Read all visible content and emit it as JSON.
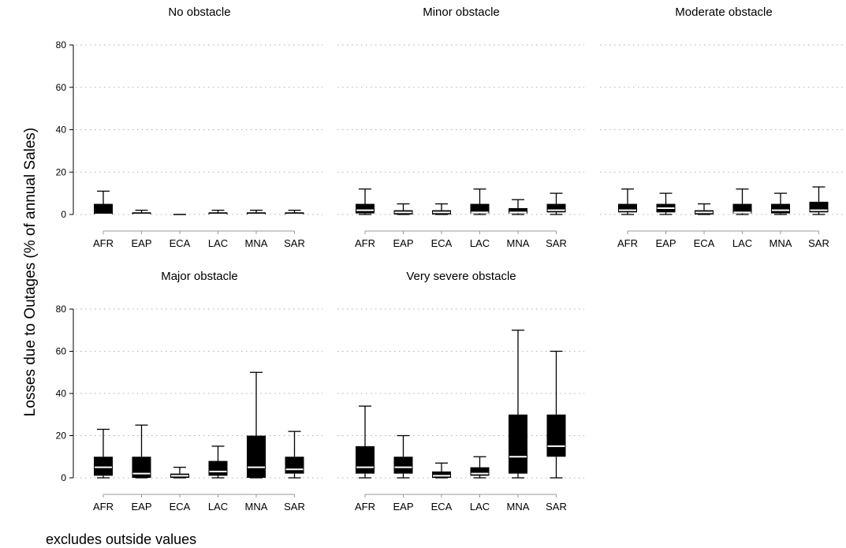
{
  "chart_data": {
    "type": "box",
    "ylabel": "Losses due to Outages (% of annual Sales)",
    "note": "excludes outside values",
    "ylim": [
      0,
      80
    ],
    "yticks": [
      0,
      20,
      40,
      60,
      80
    ],
    "grid": true,
    "categories": [
      "AFR",
      "EAP",
      "ECA",
      "LAC",
      "MNA",
      "SAR"
    ],
    "panels": [
      {
        "title": "No obstacle",
        "boxes": [
          {
            "category": "AFR",
            "min": 0,
            "q1": 0,
            "median": 0,
            "q3": 5,
            "max": 11
          },
          {
            "category": "EAP",
            "min": 0,
            "q1": 0,
            "median": 0,
            "q3": 1,
            "max": 2
          },
          {
            "category": "ECA",
            "min": 0,
            "q1": 0,
            "median": 0,
            "q3": 0,
            "max": 0
          },
          {
            "category": "LAC",
            "min": 0,
            "q1": 0,
            "median": 0,
            "q3": 1,
            "max": 2
          },
          {
            "category": "MNA",
            "min": 0,
            "q1": 0,
            "median": 0,
            "q3": 1,
            "max": 2
          },
          {
            "category": "SAR",
            "min": 0,
            "q1": 0,
            "median": 0,
            "q3": 1,
            "max": 2
          }
        ]
      },
      {
        "title": "Minor obstacle",
        "boxes": [
          {
            "category": "AFR",
            "min": 0,
            "q1": 0.5,
            "median": 2,
            "q3": 5,
            "max": 12
          },
          {
            "category": "EAP",
            "min": 0,
            "q1": 0,
            "median": 1,
            "q3": 2,
            "max": 5
          },
          {
            "category": "ECA",
            "min": 0,
            "q1": 0,
            "median": 1,
            "q3": 2,
            "max": 5
          },
          {
            "category": "LAC",
            "min": 0,
            "q1": 0.5,
            "median": 1,
            "q3": 5,
            "max": 12
          },
          {
            "category": "MNA",
            "min": 0,
            "q1": 0.5,
            "median": 1,
            "q3": 3,
            "max": 7
          },
          {
            "category": "SAR",
            "min": 0,
            "q1": 1,
            "median": 2,
            "q3": 5,
            "max": 10
          }
        ]
      },
      {
        "title": "Moderate obstacle",
        "boxes": [
          {
            "category": "AFR",
            "min": 0,
            "q1": 1,
            "median": 2,
            "q3": 5,
            "max": 12
          },
          {
            "category": "EAP",
            "min": 0,
            "q1": 1,
            "median": 3,
            "q3": 5,
            "max": 10
          },
          {
            "category": "ECA",
            "min": 0,
            "q1": 0,
            "median": 1,
            "q3": 2,
            "max": 5
          },
          {
            "category": "LAC",
            "min": 0,
            "q1": 0.5,
            "median": 1,
            "q3": 5,
            "max": 12
          },
          {
            "category": "MNA",
            "min": 0,
            "q1": 0.5,
            "median": 2,
            "q3": 5,
            "max": 10
          },
          {
            "category": "SAR",
            "min": 0,
            "q1": 1,
            "median": 2,
            "q3": 6,
            "max": 13
          }
        ]
      },
      {
        "title": "Major obstacle",
        "boxes": [
          {
            "category": "AFR",
            "min": 0,
            "q1": 1,
            "median": 5,
            "q3": 10,
            "max": 23
          },
          {
            "category": "EAP",
            "min": 0,
            "q1": 0,
            "median": 2,
            "q3": 10,
            "max": 25
          },
          {
            "category": "ECA",
            "min": 0,
            "q1": 0,
            "median": 1,
            "q3": 2,
            "max": 5
          },
          {
            "category": "LAC",
            "min": 0,
            "q1": 1,
            "median": 3,
            "q3": 8,
            "max": 15
          },
          {
            "category": "MNA",
            "min": 0,
            "q1": 0,
            "median": 5,
            "q3": 20,
            "max": 50
          },
          {
            "category": "SAR",
            "min": 0,
            "q1": 2,
            "median": 4,
            "q3": 10,
            "max": 22
          }
        ]
      },
      {
        "title": "Very severe obstacle",
        "boxes": [
          {
            "category": "AFR",
            "min": 0,
            "q1": 2,
            "median": 5,
            "q3": 15,
            "max": 34
          },
          {
            "category": "EAP",
            "min": 0,
            "q1": 2,
            "median": 5,
            "q3": 10,
            "max": 20
          },
          {
            "category": "ECA",
            "min": 0,
            "q1": 0,
            "median": 1,
            "q3": 3,
            "max": 7
          },
          {
            "category": "LAC",
            "min": 0,
            "q1": 1,
            "median": 2,
            "q3": 5,
            "max": 10
          },
          {
            "category": "MNA",
            "min": 0,
            "q1": 2,
            "median": 10,
            "q3": 30,
            "max": 70
          },
          {
            "category": "SAR",
            "min": 0,
            "q1": 10,
            "median": 15,
            "q3": 30,
            "max": 60
          }
        ]
      }
    ]
  }
}
